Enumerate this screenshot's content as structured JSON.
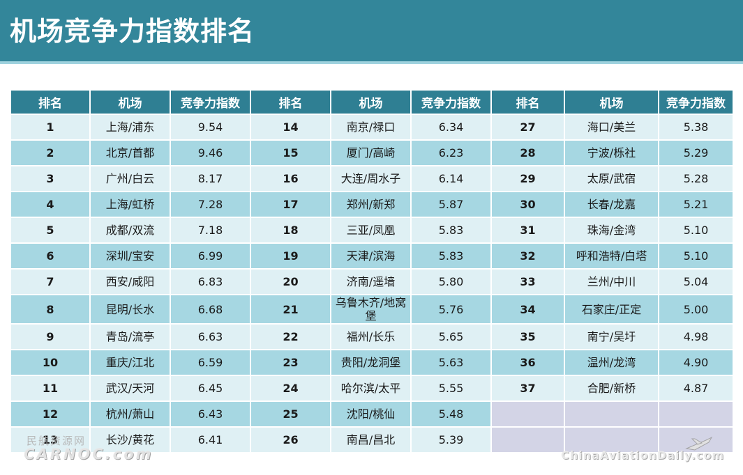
{
  "title": "机场竞争力指数排名",
  "headers": {
    "rank": "排名",
    "airport": "机场",
    "index": "竞争力指数"
  },
  "rows": [
    [
      {
        "rank": "1",
        "airport": "上海/浦东",
        "index": "9.54"
      },
      {
        "rank": "14",
        "airport": "南京/禄口",
        "index": "6.34"
      },
      {
        "rank": "27",
        "airport": "海口/美兰",
        "index": "5.38"
      }
    ],
    [
      {
        "rank": "2",
        "airport": "北京/首都",
        "index": "9.46"
      },
      {
        "rank": "15",
        "airport": "厦门/高崎",
        "index": "6.23"
      },
      {
        "rank": "28",
        "airport": "宁波/栎社",
        "index": "5.29"
      }
    ],
    [
      {
        "rank": "3",
        "airport": "广州/白云",
        "index": "8.17"
      },
      {
        "rank": "16",
        "airport": "大连/周水子",
        "index": "6.14"
      },
      {
        "rank": "29",
        "airport": "太原/武宿",
        "index": "5.28"
      }
    ],
    [
      {
        "rank": "4",
        "airport": "上海/虹桥",
        "index": "7.28"
      },
      {
        "rank": "17",
        "airport": "郑州/新郑",
        "index": "5.87"
      },
      {
        "rank": "30",
        "airport": "长春/龙嘉",
        "index": "5.21"
      }
    ],
    [
      {
        "rank": "5",
        "airport": "成都/双流",
        "index": "7.18"
      },
      {
        "rank": "18",
        "airport": "三亚/凤凰",
        "index": "5.83"
      },
      {
        "rank": "31",
        "airport": "珠海/金湾",
        "index": "5.10"
      }
    ],
    [
      {
        "rank": "6",
        "airport": "深圳/宝安",
        "index": "6.99"
      },
      {
        "rank": "19",
        "airport": "天津/滨海",
        "index": "5.83"
      },
      {
        "rank": "32",
        "airport": "呼和浩特/白塔",
        "index": "5.10"
      }
    ],
    [
      {
        "rank": "7",
        "airport": "西安/咸阳",
        "index": "6.83"
      },
      {
        "rank": "20",
        "airport": "济南/遥墙",
        "index": "5.80"
      },
      {
        "rank": "33",
        "airport": "兰州/中川",
        "index": "5.04"
      }
    ],
    [
      {
        "rank": "8",
        "airport": "昆明/长水",
        "index": "6.68"
      },
      {
        "rank": "21",
        "airport": "乌鲁木齐/地窝堡",
        "index": "5.76"
      },
      {
        "rank": "34",
        "airport": "石家庄/正定",
        "index": "5.00"
      }
    ],
    [
      {
        "rank": "9",
        "airport": "青岛/流亭",
        "index": "6.63"
      },
      {
        "rank": "22",
        "airport": "福州/长乐",
        "index": "5.65"
      },
      {
        "rank": "35",
        "airport": "南宁/吴圩",
        "index": "4.98"
      }
    ],
    [
      {
        "rank": "10",
        "airport": "重庆/江北",
        "index": "6.59"
      },
      {
        "rank": "23",
        "airport": "贵阳/龙洞堡",
        "index": "5.63"
      },
      {
        "rank": "36",
        "airport": "温州/龙湾",
        "index": "4.90"
      }
    ],
    [
      {
        "rank": "11",
        "airport": "武汉/天河",
        "index": "6.45"
      },
      {
        "rank": "24",
        "airport": "哈尔滨/太平",
        "index": "5.55"
      },
      {
        "rank": "37",
        "airport": "合肥/新桥",
        "index": "4.87"
      }
    ],
    [
      {
        "rank": "12",
        "airport": "杭州/萧山",
        "index": "6.43"
      },
      {
        "rank": "25",
        "airport": "沈阳/桃仙",
        "index": "5.48"
      },
      null
    ],
    [
      {
        "rank": "13",
        "airport": "长沙/黄花",
        "index": "6.41"
      },
      {
        "rank": "26",
        "airport": "南昌/昌北",
        "index": "5.39"
      },
      null
    ]
  ],
  "watermarks": {
    "left_cn": "民航资源网",
    "left_en": "CARNOC.com",
    "right_url": "ChinaAviationDaily.com",
    "right_icon": "airplane-icon"
  }
}
